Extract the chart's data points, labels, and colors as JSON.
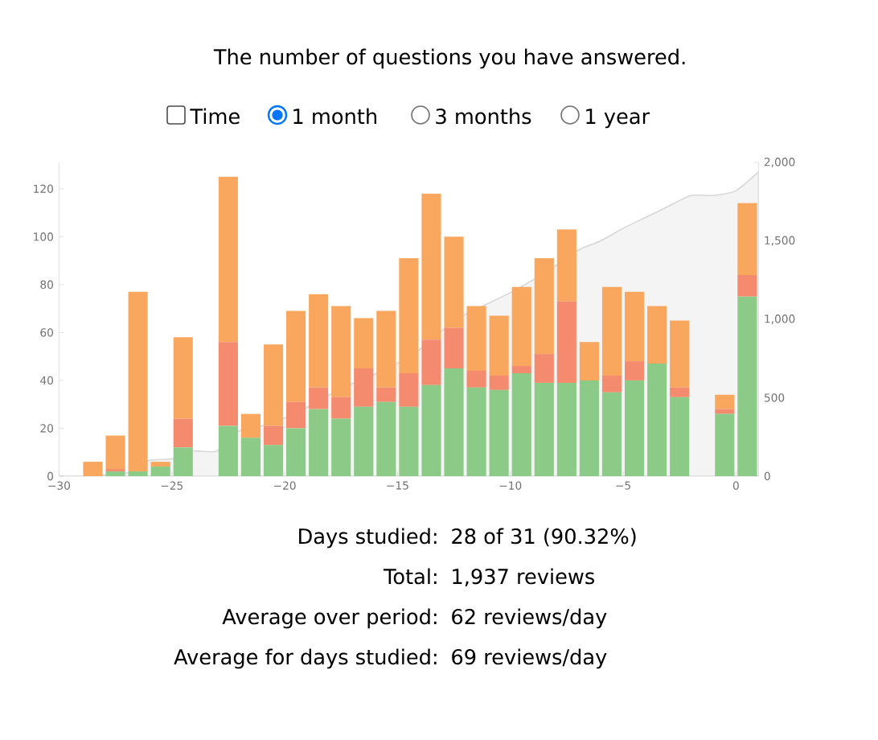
{
  "chart_data": {
    "type": "bar",
    "title": "The number of questions you have answered.",
    "x": [
      -28.5,
      -27.5,
      -26.5,
      -25.5,
      -24.5,
      -23.5,
      -22.5,
      -21.5,
      -20.5,
      -19.5,
      -18.5,
      -17.5,
      -16.5,
      -15.5,
      -14.5,
      -13.5,
      -12.5,
      -11.5,
      -10.5,
      -9.5,
      -8.5,
      -7.5,
      -6.5,
      -5.5,
      -4.5,
      -3.5,
      -2.5,
      -1.5,
      -0.5,
      0.5
    ],
    "stacked": true,
    "series": [
      {
        "color": "#8ccb87",
        "values": [
          0,
          2,
          2,
          4,
          12,
          null,
          21,
          16,
          13,
          20,
          28,
          24,
          29,
          31,
          29,
          38,
          45,
          37,
          36,
          43,
          39,
          39,
          40,
          35,
          40,
          47,
          33,
          null,
          26,
          75
        ]
      },
      {
        "color": "#f48a6e",
        "values": [
          0,
          1,
          0,
          0,
          12,
          null,
          35,
          0,
          8,
          11,
          9,
          9,
          16,
          6,
          14,
          19,
          17,
          7,
          6,
          3,
          12,
          34,
          0,
          7,
          8,
          0,
          4,
          null,
          2,
          9
        ]
      },
      {
        "color": "#f9a65e",
        "values": [
          6,
          14,
          75,
          2,
          34,
          null,
          69,
          10,
          34,
          38,
          39,
          38,
          21,
          32,
          48,
          61,
          38,
          27,
          25,
          33,
          40,
          30,
          16,
          37,
          29,
          24,
          28,
          null,
          6,
          30
        ]
      },
      {
        "type": "area",
        "axis": "y2",
        "color": "#f4f4f4",
        "x": [
          -30,
          -29,
          -28,
          -27,
          -26,
          -25,
          -24,
          -23,
          -22,
          -21,
          -20,
          -19,
          -18,
          -17,
          -16,
          -15,
          -14,
          -13,
          -12,
          -11,
          -10,
          -9,
          -8,
          -7,
          -6,
          -5,
          -4,
          -3,
          -2,
          -1,
          0,
          1
        ],
        "values": [
          0,
          0,
          10,
          20,
          100,
          110,
          160,
          160,
          290,
          320,
          370,
          440,
          520,
          590,
          650,
          720,
          810,
          930,
          1030,
          1100,
          1170,
          1250,
          1340,
          1440,
          1500,
          1580,
          1650,
          1720,
          1790,
          1790,
          1820,
          1940
        ]
      }
    ],
    "xlim": [
      -30,
      1
    ],
    "xticks": [
      {
        "value": -30,
        "label": "−30"
      },
      {
        "value": -25,
        "label": "−25"
      },
      {
        "value": -20,
        "label": "−20"
      },
      {
        "value": -15,
        "label": "−15"
      },
      {
        "value": -10,
        "label": "−10"
      },
      {
        "value": -5,
        "label": "−5"
      },
      0
    ],
    "ylim": [
      0,
      131
    ],
    "yticks": [
      0,
      20,
      40,
      60,
      80,
      100,
      120
    ],
    "y2lim": [
      0,
      2000
    ],
    "y2ticks": [
      0,
      500,
      {
        "value": 1000,
        "label": "1,000"
      },
      {
        "value": 1500,
        "label": "1,500"
      },
      {
        "value": 2000,
        "label": "2,000"
      }
    ],
    "annotations": [
      "Time",
      "1 month",
      "3 months",
      "1 year",
      "Days studied:",
      "28 of 31 (90.32%)",
      "Total:",
      "1,937 reviews",
      "Average over period:",
      "62 reviews/day",
      "Average for days studied:",
      "69 reviews/day"
    ]
  }
}
